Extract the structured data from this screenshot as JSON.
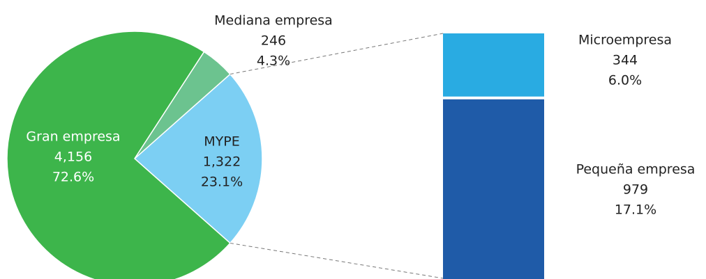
{
  "chart_data": [
    {
      "type": "pie",
      "categories": [
        "Gran empresa",
        "Mediana empresa",
        "MYPE"
      ],
      "values": [
        4156,
        246,
        1322
      ],
      "value_labels": [
        "4,156",
        "246",
        "1,322"
      ],
      "percents": [
        72.6,
        4.3,
        23.1
      ],
      "percent_labels": [
        "72.6%",
        "4.3%",
        "23.1%"
      ],
      "colors": [
        "#3db54b",
        "#6cc38f",
        "#7ccff3"
      ]
    },
    {
      "type": "bar",
      "categories": [
        "Microempresa",
        "Pequeña empresa"
      ],
      "values": [
        344,
        979
      ],
      "value_labels": [
        "344",
        "979"
      ],
      "percents": [
        6.0,
        17.1
      ],
      "percent_labels": [
        "6.0%",
        "17.1%"
      ],
      "colors": [
        "#29abe2",
        "#1f5ba8"
      ]
    }
  ]
}
